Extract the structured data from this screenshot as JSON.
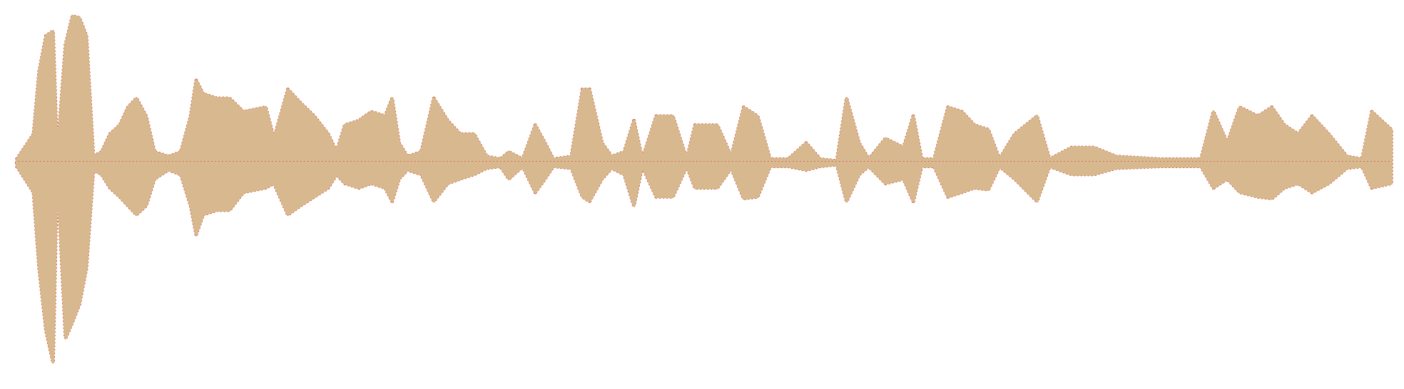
{
  "chart_data": {
    "type": "waveform",
    "x": [
      0.6,
      1.8,
      2.2,
      2.7,
      3.2,
      3.5,
      4.1,
      4.6,
      5.1,
      5.6,
      6.1,
      6.7,
      7.3,
      8.0,
      8.6,
      9.2,
      9.9,
      10.5,
      11.5,
      12.4,
      13.1,
      13.5,
      14.0,
      15.0,
      15.9,
      16.9,
      18.5,
      19.1,
      20.1,
      21.0,
      22.0,
      23.0,
      23.6,
      24.2,
      25.2,
      26.1,
      27.1,
      27.6,
      28.1,
      28.7,
      29.7,
      30.6,
      31.6,
      32.5,
      33.5,
      34.4,
      35.4,
      36.0,
      37.0,
      37.9,
      38.6,
      39.2,
      40.5,
      41.3,
      41.8,
      42.7,
      43.4,
      44.3,
      45.0,
      45.6,
      46.6,
      47.8,
      48.8,
      49.4,
      50.4,
      51.0,
      52.0,
      52.9,
      53.9,
      54.8,
      56.1,
      57.4,
      58.4,
      59.6,
      60.3,
      61.2,
      61.9,
      63.1,
      64.4,
      65.1,
      65.7,
      66.6,
      67.6,
      68.6,
      69.5,
      70.5,
      71.3,
      72.4,
      74.0,
      74.9,
      76.5,
      78.1,
      79.7,
      82.9,
      85.8,
      86.7,
      87.7,
      88.6,
      89.9,
      90.9,
      91.8,
      92.8,
      93.8,
      95.0,
      96.3,
      97.4,
      98.1,
      99.5
    ],
    "series": [
      {
        "color": "#d8b98f",
        "values": [
          4,
          32,
          102,
          142,
          147,
          7,
          132,
          164,
          162,
          142,
          7,
          12,
          32,
          42,
          62,
          72,
          52,
          12,
          7,
          12,
          52,
          92,
          77,
          72,
          72,
          57,
          62,
          27,
          82,
          67,
          52,
          32,
          12,
          42,
          47,
          57,
          52,
          72,
          22,
          7,
          12,
          72,
          47,
          32,
          32,
          7,
          4,
          12,
          4,
          42,
          22,
          4,
          7,
          82,
          82,
          22,
          7,
          12,
          47,
          4,
          52,
          52,
          4,
          42,
          42,
          42,
          7,
          62,
          52,
          4,
          4,
          22,
          4,
          2,
          72,
          22,
          4,
          27,
          17,
          52,
          4,
          4,
          62,
          57,
          42,
          37,
          4,
          32,
          52,
          4,
          17,
          17,
          7,
          4,
          4,
          57,
          22,
          62,
          52,
          62,
          42,
          32,
          52,
          32,
          7,
          4,
          57,
          37
        ]
      },
      {
        "color": "#d8b98f",
        "values": [
          -4,
          -33,
          -118,
          -188,
          -223,
          -8,
          -196,
          -178,
          -158,
          -118,
          -8,
          -13,
          -28,
          -38,
          -48,
          -58,
          -48,
          -18,
          -8,
          -13,
          -48,
          -80,
          -58,
          -53,
          -53,
          -33,
          -28,
          -23,
          -58,
          -48,
          -38,
          -28,
          -13,
          -23,
          -28,
          -23,
          -28,
          -43,
          -18,
          -8,
          -13,
          -43,
          -23,
          -18,
          -13,
          -6,
          -4,
          -18,
          -4,
          -33,
          -18,
          -4,
          -6,
          -38,
          -43,
          -18,
          -6,
          -13,
          -48,
          -4,
          -38,
          -38,
          -4,
          -28,
          -28,
          -28,
          -6,
          -40,
          -38,
          -4,
          -4,
          -8,
          -4,
          -2,
          -43,
          -13,
          -4,
          -23,
          -18,
          -43,
          -4,
          -4,
          -38,
          -33,
          -28,
          -30,
          -4,
          -18,
          -43,
          -4,
          -13,
          -13,
          -6,
          -4,
          -4,
          -28,
          -18,
          -33,
          -38,
          -40,
          -28,
          -23,
          -33,
          -23,
          -6,
          -4,
          -28,
          -23
        ]
      }
    ],
    "edge_color": "#d9302a",
    "xlim": [
      0,
      100
    ],
    "ylim": [
      -253,
      182
    ]
  }
}
